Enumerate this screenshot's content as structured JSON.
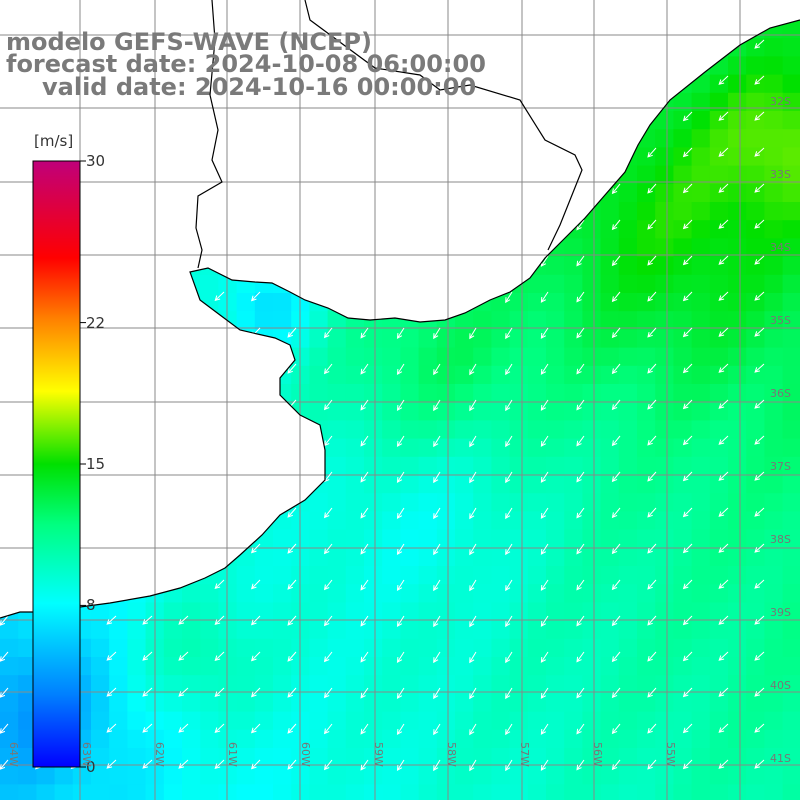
{
  "title": {
    "line1": "modelo GEFS-WAVE (NCEP)",
    "line2": "forecast date: 2024-10-08 06:00:00",
    "line3": "valid date: 2024-10-16 00:00:00"
  },
  "colorbar": {
    "unit": "[m/s]",
    "min": 0,
    "max": 30,
    "ticks": [
      {
        "value": 30,
        "label": "30"
      },
      {
        "value": 22,
        "label": "22"
      },
      {
        "value": 15,
        "label": "15"
      },
      {
        "value": 8,
        "label": "8"
      },
      {
        "value": 0,
        "label": "0"
      }
    ]
  },
  "grid": {
    "lat_labels": [
      "32S",
      "33S",
      "34S",
      "35S",
      "36S",
      "37S",
      "38S",
      "39S",
      "40S",
      "41S"
    ],
    "lon_labels": [
      "64W",
      "63W",
      "62W",
      "61W",
      "60W",
      "59W",
      "58W",
      "57W",
      "56W",
      "55W"
    ]
  },
  "colors": {
    "land": "#ffffff",
    "coast": "#000000",
    "grid": "#888888",
    "arrow": "#ffffff",
    "title": "#7a7a7a"
  }
}
